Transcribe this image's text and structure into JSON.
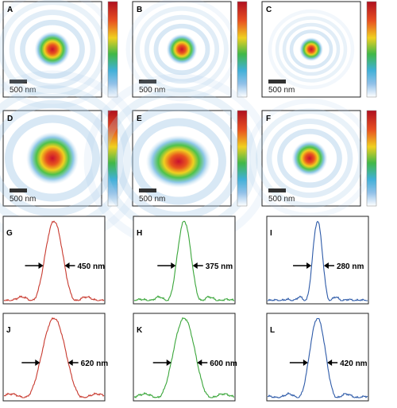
{
  "panels": [
    {
      "label": "A",
      "scale_bar": "500 nm"
    },
    {
      "label": "B",
      "scale_bar": "500 nm"
    },
    {
      "label": "C",
      "scale_bar": "500 nm"
    },
    {
      "label": "D",
      "scale_bar": "500 nm"
    },
    {
      "label": "E",
      "scale_bar": "500 nm"
    },
    {
      "label": "F",
      "scale_bar": "500 nm"
    }
  ],
  "profiles": [
    {
      "label": "G",
      "width_label": "450 nm",
      "color": "#c8392e"
    },
    {
      "label": "H",
      "width_label": "375 nm",
      "color": "#3aa63a"
    },
    {
      "label": "I",
      "width_label": "280 nm",
      "color": "#2d5aa8"
    },
    {
      "label": "J",
      "width_label": "620 nm",
      "color": "#c8392e"
    },
    {
      "label": "K",
      "width_label": "600 nm",
      "color": "#3aa63a"
    },
    {
      "label": "L",
      "width_label": "420 nm",
      "color": "#2d5aa8"
    }
  ]
}
